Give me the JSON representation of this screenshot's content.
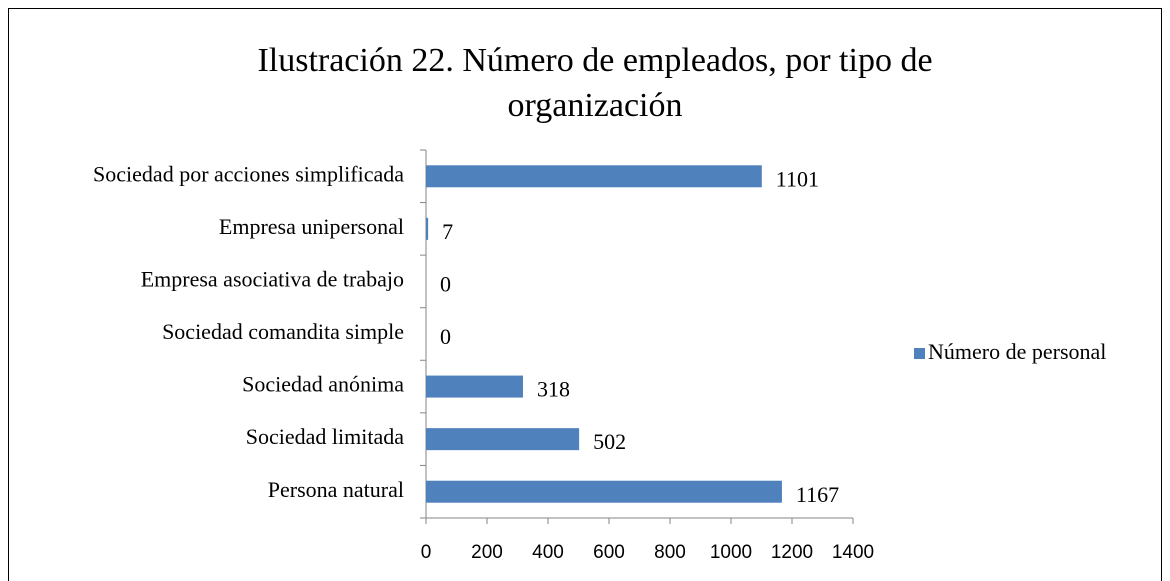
{
  "chart_data": {
    "type": "bar",
    "orientation": "horizontal",
    "title": "Ilustración 22. Número de empleados, por tipo de organización",
    "categories": [
      "Persona natural",
      "Sociedad limitada",
      "Sociedad anónima",
      "Sociedad comandita simple",
      "Empresa asociativa de trabajo",
      "Empresa unipersonal",
      "Sociedad por acciones simplificada"
    ],
    "series": [
      {
        "name": "Número de personal",
        "color": "#4f81bd",
        "values": [
          1167,
          502,
          318,
          0,
          0,
          7,
          1101
        ]
      }
    ],
    "xlim": [
      0,
      1400
    ],
    "xticks": [
      0,
      200,
      400,
      600,
      800,
      1000,
      1200,
      1400
    ],
    "legend": "right",
    "grid": false
  }
}
